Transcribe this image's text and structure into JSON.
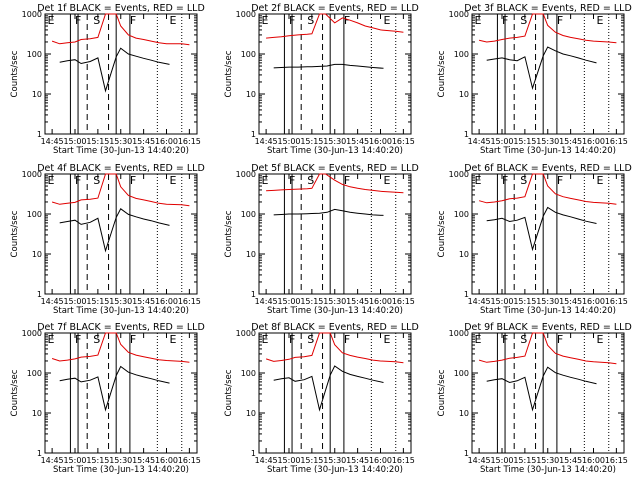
{
  "figure": {
    "background": "#ffffff",
    "axis_color": "#000000",
    "events_color": "#000000",
    "lld_color": "#e00000"
  },
  "chart_data": [
    {
      "type": "line",
      "title": "Det 1f BLACK = Events, RED = LLD",
      "xlabel": "Start Time (30-Jun-13 14:40:20)",
      "ylabel": "Counts/sec",
      "ylog": true,
      "ylim": [
        1,
        1000
      ],
      "y_ticks": [
        "1",
        "10",
        "100",
        "1000"
      ],
      "x_ticks": [
        "14:45",
        "15:00",
        "15:15",
        "15:30",
        "15:45",
        "16:00",
        "16:15"
      ],
      "interval_markers": [
        "E",
        "F",
        "S",
        "F",
        "E"
      ],
      "series": [
        {
          "name": "BLACK = Events",
          "color": "#000000",
          "times": [
            "14:50",
            "14:55",
            "15:00",
            "15:04",
            "15:10",
            "15:15",
            "15:20",
            "15:27",
            "15:30",
            "15:35",
            "15:40",
            "15:45",
            "15:50",
            "15:55",
            "16:02"
          ],
          "values": [
            62,
            68,
            72,
            58,
            65,
            80,
            12,
            85,
            140,
            100,
            88,
            78,
            70,
            62,
            55
          ]
        },
        {
          "name": "RED = LLD",
          "color": "#e00000",
          "times": [
            "14:45",
            "14:50",
            "14:55",
            "15:00",
            "15:04",
            "15:10",
            "15:15",
            "15:20",
            "15:27",
            "15:30",
            "15:35",
            "15:40",
            "15:45",
            "15:50",
            "15:55",
            "16:00",
            "16:10",
            "16:15"
          ],
          "values": [
            210,
            180,
            190,
            200,
            230,
            240,
            260,
            1000,
            1000,
            500,
            300,
            250,
            230,
            210,
            190,
            180,
            180,
            170
          ]
        }
      ]
    },
    {
      "type": "line",
      "title": "Det 2f BLACK = Events, RED = LLD",
      "xlabel": "Start Time (30-Jun-13 14:40:20)",
      "ylabel": "Counts/sec",
      "ylog": true,
      "ylim": [
        1,
        1000
      ],
      "y_ticks": [
        "1",
        "10",
        "100",
        "1000"
      ],
      "x_ticks": [
        "14:45",
        "15:00",
        "15:15",
        "15:30",
        "15:45",
        "16:00",
        "16:15"
      ],
      "interval_markers": [
        "E",
        "F",
        "S",
        "F",
        "E"
      ],
      "series": [
        {
          "name": "BLACK = Events",
          "color": "#000000",
          "times": [
            "14:50",
            "14:55",
            "15:00",
            "15:06",
            "15:12",
            "15:15",
            "15:20",
            "15:25",
            "15:30",
            "15:35",
            "15:40",
            "15:45",
            "15:50",
            "15:55",
            "16:02"
          ],
          "values": [
            45,
            46,
            47,
            47,
            48,
            48,
            49,
            50,
            55,
            55,
            52,
            50,
            48,
            46,
            44
          ]
        },
        {
          "name": "RED = LLD",
          "color": "#e00000",
          "times": [
            "14:45",
            "14:50",
            "14:55",
            "15:00",
            "15:06",
            "15:12",
            "15:15",
            "15:20",
            "15:24",
            "15:30",
            "15:35",
            "15:40",
            "15:45",
            "15:50",
            "15:55",
            "16:00",
            "16:10",
            "16:15"
          ],
          "values": [
            250,
            260,
            270,
            285,
            300,
            310,
            320,
            1000,
            1000,
            600,
            800,
            700,
            600,
            500,
            450,
            400,
            370,
            350
          ]
        }
      ]
    },
    {
      "type": "line",
      "title": "Det 3f BLACK = Events, RED = LLD",
      "xlabel": "Start Time (30-Jun-13 14:40:20)",
      "ylabel": "Counts/sec",
      "ylog": true,
      "ylim": [
        1,
        1000
      ],
      "y_ticks": [
        "1",
        "10",
        "100",
        "1000"
      ],
      "x_ticks": [
        "14:45",
        "15:00",
        "15:15",
        "15:30",
        "15:45",
        "16:00",
        "16:15"
      ],
      "interval_markers": [
        "E",
        "F",
        "S",
        "F",
        "E"
      ],
      "series": [
        {
          "name": "BLACK = Events",
          "color": "#000000",
          "times": [
            "14:50",
            "14:55",
            "15:00",
            "15:05",
            "15:10",
            "15:15",
            "15:20",
            "15:27",
            "15:30",
            "15:35",
            "15:40",
            "15:45",
            "15:50",
            "15:55",
            "16:02"
          ],
          "values": [
            70,
            75,
            80,
            72,
            68,
            85,
            14,
            90,
            150,
            120,
            100,
            90,
            80,
            70,
            60
          ]
        },
        {
          "name": "RED = LLD",
          "color": "#e00000",
          "times": [
            "14:45",
            "14:50",
            "14:55",
            "15:00",
            "15:05",
            "15:10",
            "15:15",
            "15:20",
            "15:27",
            "15:30",
            "15:35",
            "15:40",
            "15:45",
            "15:50",
            "15:55",
            "16:00",
            "16:10",
            "16:15"
          ],
          "values": [
            220,
            200,
            210,
            230,
            250,
            260,
            280,
            1000,
            1000,
            520,
            350,
            290,
            260,
            240,
            220,
            210,
            200,
            190
          ]
        }
      ]
    },
    {
      "type": "line",
      "title": "Det 4f BLACK = Events, RED = LLD",
      "xlabel": "Start Time (30-Jun-13 14:40:20)",
      "ylabel": "Counts/sec",
      "ylog": true,
      "ylim": [
        1,
        1000
      ],
      "y_ticks": [
        "1",
        "10",
        "100",
        "1000"
      ],
      "x_ticks": [
        "14:45",
        "15:00",
        "15:15",
        "15:30",
        "15:45",
        "16:00",
        "16:15"
      ],
      "interval_markers": [
        "E",
        "F",
        "S",
        "F",
        "E"
      ],
      "series": [
        {
          "name": "BLACK = Events",
          "color": "#000000",
          "times": [
            "14:50",
            "14:55",
            "15:00",
            "15:04",
            "15:10",
            "15:15",
            "15:20",
            "15:27",
            "15:30",
            "15:35",
            "15:40",
            "15:45",
            "15:50",
            "15:55",
            "16:02"
          ],
          "values": [
            60,
            65,
            70,
            55,
            62,
            78,
            12,
            82,
            135,
            98,
            85,
            75,
            68,
            60,
            52
          ]
        },
        {
          "name": "RED = LLD",
          "color": "#e00000",
          "times": [
            "14:45",
            "14:50",
            "14:55",
            "15:00",
            "15:04",
            "15:10",
            "15:15",
            "15:20",
            "15:27",
            "15:30",
            "15:35",
            "15:40",
            "15:45",
            "15:50",
            "15:55",
            "16:00",
            "16:10",
            "16:15"
          ],
          "values": [
            200,
            175,
            185,
            195,
            225,
            235,
            250,
            1000,
            1000,
            480,
            290,
            245,
            225,
            205,
            185,
            175,
            170,
            160
          ]
        }
      ]
    },
    {
      "type": "line",
      "title": "Det 5f BLACK = Events, RED = LLD",
      "xlabel": "Start Time (30-Jun-13 14:40:20)",
      "ylabel": "Counts/sec",
      "ylog": true,
      "ylim": [
        1,
        1000
      ],
      "y_ticks": [
        "1",
        "10",
        "100",
        "1000"
      ],
      "x_ticks": [
        "14:45",
        "15:00",
        "15:15",
        "15:30",
        "15:45",
        "16:00",
        "16:15"
      ],
      "interval_markers": [
        "E",
        "F",
        "S",
        "F",
        "E"
      ],
      "series": [
        {
          "name": "BLACK = Events",
          "color": "#000000",
          "times": [
            "14:50",
            "14:55",
            "15:00",
            "15:06",
            "15:12",
            "15:15",
            "15:20",
            "15:25",
            "15:30",
            "15:35",
            "15:40",
            "15:45",
            "15:50",
            "15:55",
            "16:02"
          ],
          "values": [
            95,
            97,
            100,
            100,
            102,
            103,
            105,
            110,
            130,
            120,
            110,
            105,
            100,
            95,
            92
          ]
        },
        {
          "name": "RED = LLD",
          "color": "#e00000",
          "times": [
            "14:45",
            "14:50",
            "14:55",
            "15:00",
            "15:06",
            "15:12",
            "15:15",
            "15:20",
            "15:24",
            "15:30",
            "15:35",
            "15:40",
            "15:45",
            "15:50",
            "15:55",
            "16:00",
            "16:10",
            "16:15"
          ],
          "values": [
            380,
            390,
            400,
            410,
            420,
            430,
            440,
            1000,
            1000,
            700,
            550,
            480,
            440,
            410,
            390,
            370,
            350,
            340
          ]
        }
      ]
    },
    {
      "type": "line",
      "title": "Det 6f BLACK = Events, RED = LLD",
      "xlabel": "Start Time (30-Jun-13 14:40:20)",
      "ylabel": "Counts/sec",
      "ylog": true,
      "ylim": [
        1,
        1000
      ],
      "y_ticks": [
        "1",
        "10",
        "100",
        "1000"
      ],
      "x_ticks": [
        "14:45",
        "15:00",
        "15:15",
        "15:30",
        "15:45",
        "16:00",
        "16:15"
      ],
      "interval_markers": [
        "E",
        "F",
        "S",
        "F",
        "E"
      ],
      "series": [
        {
          "name": "BLACK = Events",
          "color": "#000000",
          "times": [
            "14:50",
            "14:55",
            "15:00",
            "15:05",
            "15:10",
            "15:15",
            "15:20",
            "15:27",
            "15:30",
            "15:35",
            "15:40",
            "15:45",
            "15:50",
            "15:55",
            "16:02"
          ],
          "values": [
            68,
            72,
            78,
            65,
            70,
            82,
            13,
            88,
            145,
            110,
            95,
            85,
            75,
            66,
            58
          ]
        },
        {
          "name": "RED = LLD",
          "color": "#e00000",
          "times": [
            "14:45",
            "14:50",
            "14:55",
            "15:00",
            "15:05",
            "15:10",
            "15:15",
            "15:20",
            "15:27",
            "15:30",
            "15:35",
            "15:40",
            "15:45",
            "15:50",
            "15:55",
            "16:00",
            "16:10",
            "16:15"
          ],
          "values": [
            215,
            190,
            200,
            215,
            240,
            250,
            270,
            1000,
            1000,
            500,
            320,
            270,
            245,
            225,
            205,
            195,
            185,
            175
          ]
        }
      ]
    },
    {
      "type": "line",
      "title": "Det 7f BLACK = Events, RED = LLD",
      "xlabel": "Start Time (30-Jun-13 14:40:20)",
      "ylabel": "Counts/sec",
      "ylog": true,
      "ylim": [
        1,
        1000
      ],
      "y_ticks": [
        "1",
        "10",
        "100",
        "1000"
      ],
      "x_ticks": [
        "14:45",
        "15:00",
        "15:15",
        "15:30",
        "15:45",
        "16:00",
        "16:15"
      ],
      "interval_markers": [
        "E",
        "F",
        "S",
        "F",
        "E"
      ],
      "series": [
        {
          "name": "BLACK = Events",
          "color": "#000000",
          "times": [
            "14:50",
            "14:55",
            "15:00",
            "15:04",
            "15:10",
            "15:15",
            "15:20",
            "15:27",
            "15:30",
            "15:35",
            "15:40",
            "15:45",
            "15:50",
            "15:55",
            "16:02"
          ],
          "values": [
            64,
            70,
            74,
            60,
            66,
            80,
            12,
            86,
            145,
            105,
            90,
            80,
            72,
            64,
            56
          ]
        },
        {
          "name": "RED = LLD",
          "color": "#e00000",
          "times": [
            "14:45",
            "14:50",
            "14:55",
            "15:00",
            "15:04",
            "15:10",
            "15:15",
            "15:20",
            "15:27",
            "15:30",
            "15:35",
            "15:40",
            "15:45",
            "15:50",
            "15:55",
            "16:00",
            "16:10",
            "16:15"
          ],
          "values": [
            230,
            200,
            210,
            225,
            250,
            260,
            280,
            1000,
            1000,
            520,
            330,
            280,
            255,
            235,
            215,
            205,
            195,
            185
          ]
        }
      ]
    },
    {
      "type": "line",
      "title": "Det 8f BLACK = Events, RED = LLD",
      "xlabel": "Start Time (30-Jun-13 14:40:20)",
      "ylabel": "Counts/sec",
      "ylog": true,
      "ylim": [
        1,
        1000
      ],
      "y_ticks": [
        "1",
        "10",
        "100",
        "1000"
      ],
      "x_ticks": [
        "14:45",
        "15:00",
        "15:15",
        "15:30",
        "15:45",
        "16:00",
        "16:15"
      ],
      "interval_markers": [
        "E",
        "F",
        "S",
        "F",
        "E"
      ],
      "series": [
        {
          "name": "BLACK = Events",
          "color": "#000000",
          "times": [
            "14:50",
            "14:55",
            "15:00",
            "15:04",
            "15:10",
            "15:15",
            "15:20",
            "15:27",
            "15:30",
            "15:35",
            "15:40",
            "15:45",
            "15:50",
            "15:55",
            "16:02"
          ],
          "values": [
            66,
            72,
            76,
            62,
            68,
            82,
            12,
            88,
            150,
            110,
            92,
            82,
            74,
            66,
            58
          ]
        },
        {
          "name": "RED = LLD",
          "color": "#e00000",
          "times": [
            "14:45",
            "14:50",
            "14:55",
            "15:00",
            "15:04",
            "15:10",
            "15:15",
            "15:20",
            "15:27",
            "15:30",
            "15:35",
            "15:40",
            "15:45",
            "15:50",
            "15:55",
            "16:00",
            "16:10",
            "16:15"
          ],
          "values": [
            225,
            195,
            205,
            220,
            245,
            255,
            275,
            1000,
            1000,
            510,
            320,
            275,
            250,
            230,
            210,
            200,
            190,
            180
          ]
        }
      ]
    },
    {
      "type": "line",
      "title": "Det 9f BLACK = Events, RED = LLD",
      "xlabel": "Start Time (30-Jun-13 14:40:20)",
      "ylabel": "Counts/sec",
      "ylog": true,
      "ylim": [
        1,
        1000
      ],
      "y_ticks": [
        "1",
        "10",
        "100",
        "1000"
      ],
      "x_ticks": [
        "14:45",
        "15:00",
        "15:15",
        "15:30",
        "15:45",
        "16:00",
        "16:15"
      ],
      "interval_markers": [
        "E",
        "F",
        "S",
        "F",
        "E"
      ],
      "series": [
        {
          "name": "BLACK = Events",
          "color": "#000000",
          "times": [
            "14:50",
            "14:55",
            "15:00",
            "15:05",
            "15:10",
            "15:15",
            "15:20",
            "15:27",
            "15:30",
            "15:35",
            "15:40",
            "15:45",
            "15:50",
            "15:55",
            "16:02"
          ],
          "values": [
            62,
            68,
            72,
            58,
            64,
            78,
            12,
            84,
            140,
            102,
            88,
            78,
            70,
            62,
            54
          ]
        },
        {
          "name": "RED = LLD",
          "color": "#e00000",
          "times": [
            "14:45",
            "14:50",
            "14:55",
            "15:00",
            "15:05",
            "15:10",
            "15:15",
            "15:20",
            "15:27",
            "15:30",
            "15:35",
            "15:40",
            "15:45",
            "15:50",
            "15:55",
            "16:00",
            "16:10",
            "16:15"
          ],
          "values": [
            210,
            185,
            195,
            210,
            235,
            245,
            265,
            1000,
            1000,
            490,
            310,
            265,
            240,
            220,
            200,
            190,
            180,
            170
          ]
        }
      ]
    }
  ]
}
